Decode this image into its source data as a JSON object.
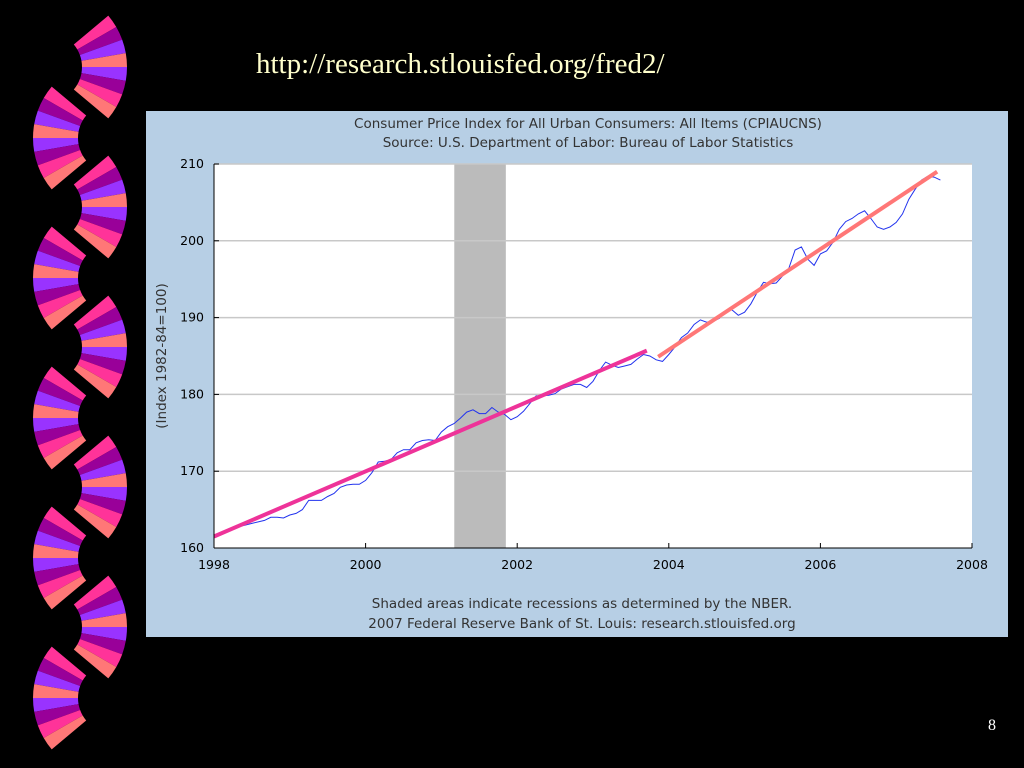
{
  "slide": {
    "url_text": "http://research.stlouisfed.org/fred2/",
    "page_number": "8",
    "fan_colors": [
      "#ff3399",
      "#990099",
      "#9933ff",
      "#ff7777"
    ]
  },
  "chart_data": {
    "type": "line",
    "title": "Consumer Price Index for All Urban Consumers: All Items (CPIAUCNS)",
    "subtitle": "Source: U.S. Department of Labor: Bureau of Labor Statistics",
    "xlabel": "",
    "ylabel": "(Index 1982-84=100)",
    "xlim": [
      1998,
      2008
    ],
    "ylim": [
      160,
      210
    ],
    "x_ticks": [
      "1998",
      "2000",
      "2002",
      "2004",
      "2006",
      "2008"
    ],
    "y_ticks": [
      "160",
      "170",
      "180",
      "190",
      "200",
      "210"
    ],
    "grid": "horizontal",
    "footnote1": "Shaded areas indicate recessions as determined by the NBER.",
    "footnote2": "2007 Federal Reserve Bank of St. Louis: research.stlouisfed.org",
    "recessions": [
      [
        2001.17,
        2001.85
      ]
    ],
    "series": [
      {
        "name": "CPIAUCNS",
        "color": "#2233ee",
        "start_year": 1998.0,
        "step_years": 0.0833333,
        "values": [
          161.6,
          161.9,
          162.2,
          162.5,
          162.8,
          163.0,
          163.2,
          163.4,
          163.6,
          164.0,
          164.0,
          163.9,
          164.3,
          164.5,
          165.0,
          166.2,
          166.2,
          166.2,
          166.7,
          167.1,
          167.9,
          168.2,
          168.3,
          168.3,
          168.8,
          169.8,
          171.2,
          171.3,
          171.5,
          172.4,
          172.8,
          172.8,
          173.7,
          174.0,
          174.1,
          174.0,
          175.1,
          175.8,
          176.2,
          176.9,
          177.7,
          178.0,
          177.5,
          177.5,
          178.3,
          177.7,
          177.4,
          176.7,
          177.1,
          177.8,
          178.8,
          179.8,
          179.8,
          179.9,
          180.1,
          180.7,
          181.0,
          181.3,
          181.3,
          180.9,
          181.7,
          183.1,
          184.2,
          183.8,
          183.5,
          183.7,
          183.9,
          184.6,
          185.2,
          185.0,
          184.5,
          184.3,
          185.2,
          186.2,
          187.4,
          188.0,
          189.1,
          189.7,
          189.4,
          189.5,
          189.9,
          190.9,
          191.0,
          190.3,
          190.7,
          191.8,
          193.3,
          194.6,
          194.4,
          194.5,
          195.4,
          196.4,
          198.8,
          199.2,
          197.6,
          196.8,
          198.3,
          198.7,
          199.8,
          201.5,
          202.5,
          202.9,
          203.5,
          203.9,
          202.9,
          201.8,
          201.5,
          201.8,
          202.4,
          203.5,
          205.4,
          206.7,
          207.9,
          208.4,
          208.3,
          207.9
        ]
      }
    ],
    "trend_lines": [
      {
        "name": "trend-1998-2003",
        "color": "#ee3399",
        "from": [
          1998.0,
          161.5
        ],
        "to": [
          2003.71,
          185.7
        ]
      },
      {
        "name": "trend-2004-2007",
        "color": "#ff7777",
        "from": [
          2003.86,
          184.9
        ],
        "to": [
          2007.54,
          209.0
        ]
      }
    ]
  }
}
